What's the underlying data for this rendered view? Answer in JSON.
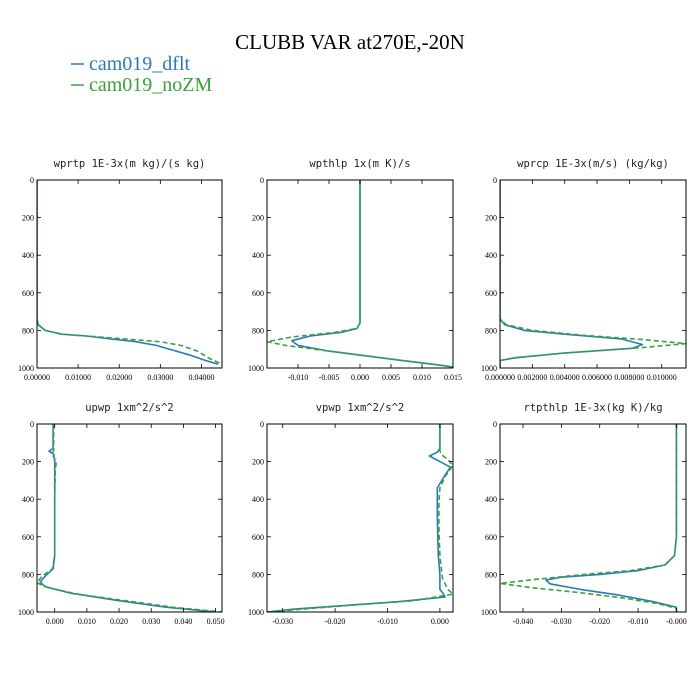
{
  "figure": {
    "title": "CLUBB VAR at270E,-20N",
    "legend": [
      {
        "label": "cam019_dflt",
        "color": "#2a7ab9",
        "dash": "solid"
      },
      {
        "label": "cam019_noZM",
        "color": "#3aa23a",
        "dash": "dashed"
      }
    ]
  },
  "chart_data": [
    {
      "type": "line",
      "title": "wprtp  1E-3x(m kg)/(s kg)",
      "xlim": [
        0,
        0.045
      ],
      "ylim": [
        0,
        1000
      ],
      "y_inverted": true,
      "xticks": [
        0,
        0.01,
        0.02,
        0.03,
        0.04
      ],
      "xtick_labels": [
        "0.00000",
        "0.01000",
        "0.02000",
        "0.03000",
        "0.04000"
      ],
      "yticks": [
        0,
        200,
        400,
        600,
        800,
        1000
      ],
      "ytick_labels": [
        "0",
        "200",
        "400",
        "600",
        "800",
        "1000"
      ],
      "series": [
        {
          "color": "#2a7ab9",
          "dash": "solid",
          "x": [
            0,
            0,
            0,
            0,
            0.0003,
            0.002,
            0.006,
            0.012,
            0.018,
            0.024,
            0.029,
            0.033,
            0.037,
            0.041,
            0.044
          ],
          "y": [
            0,
            300,
            600,
            740,
            770,
            800,
            820,
            830,
            845,
            860,
            880,
            905,
            930,
            960,
            980
          ]
        },
        {
          "color": "#3aa23a",
          "dash": "dashed",
          "x": [
            0,
            0,
            0,
            0,
            0.0003,
            0.002,
            0.006,
            0.012,
            0.018,
            0.024,
            0.03,
            0.035,
            0.039,
            0.042,
            0.045
          ],
          "y": [
            0,
            300,
            600,
            740,
            770,
            800,
            820,
            830,
            840,
            850,
            860,
            880,
            910,
            950,
            980
          ]
        }
      ]
    },
    {
      "type": "line",
      "title": "wpthlp  1x(m K)/s",
      "xlim": [
        -0.015,
        0.015
      ],
      "ylim": [
        0,
        1000
      ],
      "y_inverted": true,
      "xticks": [
        -0.01,
        -0.005,
        0,
        0.005,
        0.01,
        0.015
      ],
      "xtick_labels": [
        "-0.010",
        "-0.005",
        "0.000",
        "0.005",
        "0.010",
        "0.015"
      ],
      "yticks": [
        0,
        200,
        400,
        600,
        800,
        1000
      ],
      "ytick_labels": [
        "0",
        "200",
        "400",
        "600",
        "800",
        "1000"
      ],
      "series": [
        {
          "color": "#2a7ab9",
          "dash": "solid",
          "x": [
            0,
            0,
            0,
            0,
            0,
            -0.0005,
            -0.003,
            -0.008,
            -0.011,
            -0.01,
            -0.005,
            0.002,
            0.008,
            0.013,
            0.015
          ],
          "y": [
            0,
            200,
            400,
            600,
            760,
            790,
            810,
            830,
            855,
            880,
            910,
            940,
            965,
            985,
            995
          ]
        },
        {
          "color": "#3aa23a",
          "dash": "dashed",
          "x": [
            0,
            0,
            0,
            0,
            0,
            -0.0005,
            -0.004,
            -0.011,
            -0.015,
            -0.012,
            -0.005,
            0.002,
            0.008,
            0.013,
            0.015
          ],
          "y": [
            0,
            200,
            400,
            600,
            760,
            790,
            810,
            835,
            860,
            880,
            910,
            940,
            965,
            985,
            995
          ]
        }
      ]
    },
    {
      "type": "line",
      "title": "wprcp  1E-3x(m/s) (kg/kg)",
      "xlim": [
        0,
        0.0115
      ],
      "ylim": [
        0,
        1000
      ],
      "y_inverted": true,
      "xticks": [
        0,
        0.002,
        0.004,
        0.006,
        0.008,
        0.01
      ],
      "xtick_labels": [
        "0.000000",
        "0.002000",
        "0.004000",
        "0.006000",
        "0.008000",
        "0.010000"
      ],
      "yticks": [
        0,
        200,
        400,
        600,
        800,
        1000
      ],
      "ytick_labels": [
        "0",
        "200",
        "400",
        "600",
        "800",
        "1000"
      ],
      "series": [
        {
          "color": "#2a7ab9",
          "dash": "solid",
          "x": [
            0,
            0,
            0,
            0,
            0.0003,
            0.0015,
            0.004,
            0.0075,
            0.0088,
            0.0082,
            0.004,
            0.001,
            0,
            0
          ],
          "y": [
            0,
            300,
            600,
            740,
            770,
            800,
            820,
            845,
            875,
            895,
            920,
            945,
            960,
            1000
          ]
        },
        {
          "color": "#3aa23a",
          "dash": "dashed",
          "x": [
            0,
            0,
            0,
            0,
            0.0004,
            0.002,
            0.005,
            0.009,
            0.0115,
            0.009,
            0.004,
            0.001,
            0,
            0
          ],
          "y": [
            0,
            300,
            600,
            740,
            770,
            800,
            825,
            850,
            870,
            890,
            920,
            945,
            960,
            1000
          ]
        }
      ]
    },
    {
      "type": "line",
      "title": "upwp  1xm^2/s^2",
      "xlim": [
        -0.0055,
        0.052
      ],
      "ylim": [
        0,
        1000
      ],
      "y_inverted": true,
      "xticks": [
        0,
        0.01,
        0.02,
        0.03,
        0.04,
        0.05
      ],
      "xtick_labels": [
        "0.000",
        "0.010",
        "0.020",
        "0.030",
        "0.040",
        "0.050"
      ],
      "yticks": [
        0,
        200,
        400,
        600,
        800,
        1000
      ],
      "ytick_labels": [
        "0",
        "200",
        "400",
        "600",
        "800",
        "1000"
      ],
      "series": [
        {
          "color": "#2a7ab9",
          "dash": "solid",
          "x": [
            -0.0005,
            -0.0005,
            -0.0018,
            -0.0003,
            0,
            0,
            0,
            -0.0005,
            -0.003,
            -0.0045,
            -0.003,
            0.005,
            0.02,
            0.035,
            0.05
          ],
          "y": [
            0,
            130,
            145,
            160,
            200,
            400,
            700,
            770,
            810,
            840,
            865,
            900,
            940,
            975,
            1000
          ]
        },
        {
          "color": "#3aa23a",
          "dash": "dashed",
          "x": [
            -0.0003,
            -0.0003,
            -0.0008,
            0.0005,
            0.0002,
            0,
            0,
            -0.0007,
            -0.004,
            -0.0055,
            -0.002,
            0.007,
            0.022,
            0.037,
            0.052
          ],
          "y": [
            0,
            140,
            160,
            200,
            250,
            400,
            700,
            770,
            810,
            845,
            870,
            905,
            940,
            975,
            1000
          ]
        }
      ]
    },
    {
      "type": "line",
      "title": "vpwp  1xm^2/s^2",
      "xlim": [
        -0.033,
        0.0025
      ],
      "ylim": [
        0,
        1000
      ],
      "y_inverted": true,
      "xticks": [
        -0.03,
        -0.02,
        -0.01,
        0
      ],
      "xtick_labels": [
        "-0.030",
        "-0.020",
        "-0.010",
        "0.000"
      ],
      "yticks": [
        0,
        200,
        400,
        600,
        800,
        1000
      ],
      "ytick_labels": [
        "0",
        "200",
        "400",
        "600",
        "800",
        "1000"
      ],
      "series": [
        {
          "color": "#2a7ab9",
          "dash": "solid",
          "x": [
            0,
            0,
            -0.0005,
            -0.002,
            0,
            0.002,
            0.0008,
            -0.0005,
            -0.0005,
            -0.0003,
            0,
            0,
            0.0006,
            0.001,
            -0.008,
            -0.018,
            -0.028,
            -0.033
          ],
          "y": [
            0,
            130,
            150,
            170,
            200,
            230,
            280,
            340,
            500,
            700,
            800,
            880,
            900,
            920,
            945,
            965,
            985,
            1000
          ]
        },
        {
          "color": "#3aa23a",
          "dash": "dashed",
          "x": [
            0,
            0,
            0.0002,
            0.0015,
            0.0025,
            0.001,
            0,
            -0.0002,
            -0.0002,
            0,
            0.0005,
            0.0015,
            0.0025,
            -0.005,
            -0.015,
            -0.025,
            -0.033
          ],
          "y": [
            0,
            140,
            160,
            190,
            220,
            280,
            340,
            420,
            550,
            700,
            820,
            880,
            905,
            940,
            960,
            982,
            1000
          ]
        }
      ]
    },
    {
      "type": "line",
      "title": "rtpthlp  1E-3x(kg K)/kg",
      "xlim": [
        -0.046,
        0.0025
      ],
      "ylim": [
        0,
        1000
      ],
      "y_inverted": true,
      "xticks": [
        -0.04,
        -0.03,
        -0.02,
        -0.01,
        0
      ],
      "xtick_labels": [
        "-0.040",
        "-0.030",
        "-0.020",
        "-0.010",
        "-0.000"
      ],
      "yticks": [
        0,
        200,
        400,
        600,
        800,
        1000
      ],
      "ytick_labels": [
        "0",
        "200",
        "400",
        "600",
        "800",
        "1000"
      ],
      "series": [
        {
          "color": "#2a7ab9",
          "dash": "solid",
          "x": [
            0,
            0,
            0,
            0,
            -0.0005,
            -0.003,
            -0.01,
            -0.02,
            -0.03,
            -0.034,
            -0.033,
            -0.025,
            -0.015,
            -0.006,
            0,
            0
          ],
          "y": [
            0,
            200,
            400,
            600,
            700,
            750,
            780,
            800,
            815,
            830,
            850,
            880,
            910,
            945,
            975,
            1000
          ]
        },
        {
          "color": "#3aa23a",
          "dash": "dashed",
          "x": [
            0,
            0,
            0,
            0,
            -0.0005,
            -0.003,
            -0.012,
            -0.024,
            -0.036,
            -0.046,
            -0.038,
            -0.026,
            -0.014,
            -0.005,
            0,
            0
          ],
          "y": [
            0,
            200,
            400,
            600,
            700,
            750,
            780,
            800,
            825,
            848,
            870,
            895,
            925,
            955,
            980,
            1000
          ]
        }
      ]
    }
  ]
}
